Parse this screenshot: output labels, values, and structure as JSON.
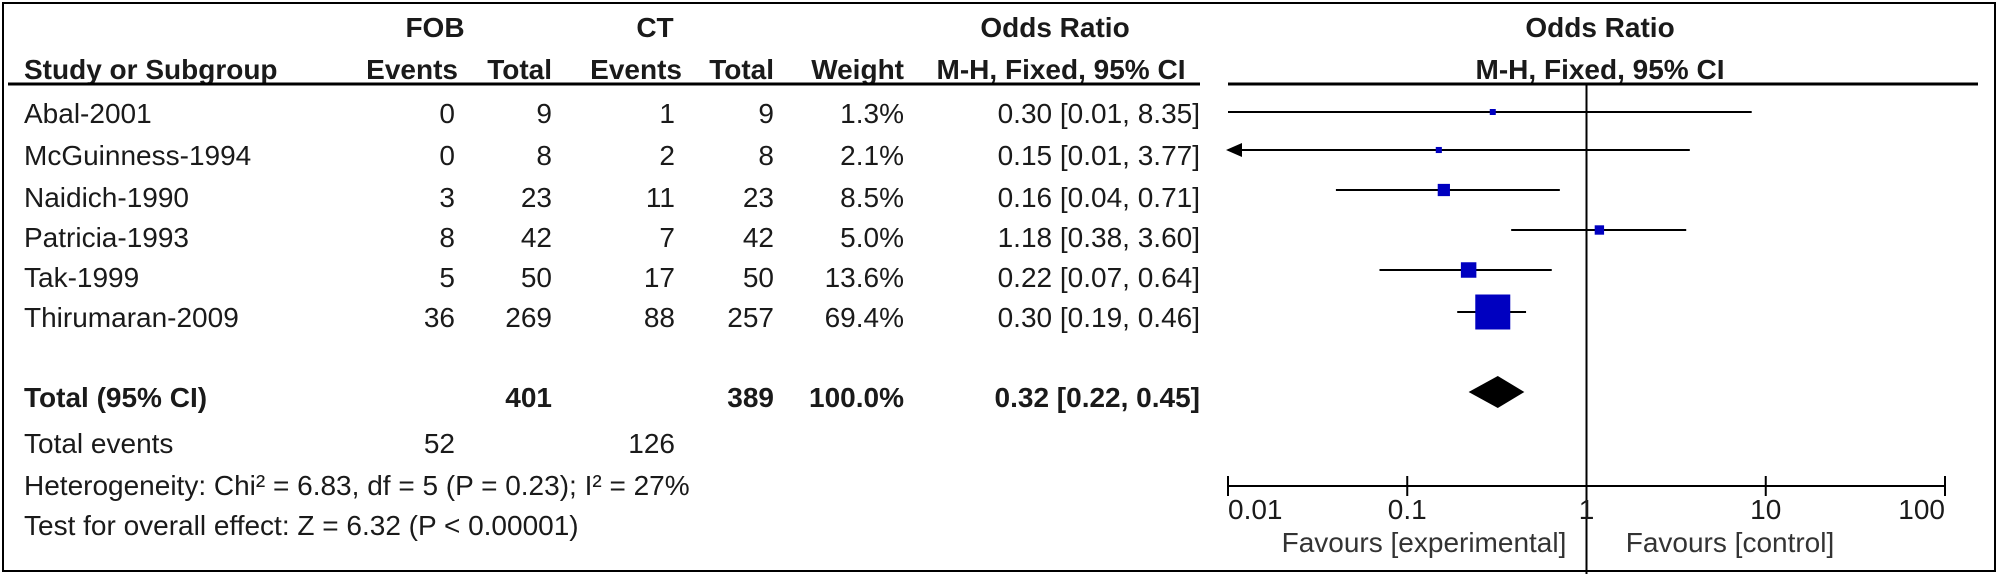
{
  "headers": {
    "group1": "FOB",
    "group2": "CT",
    "or_top": "Odds Ratio",
    "plot_top": "Odds Ratio",
    "study": "Study or Subgroup",
    "events1": "Events",
    "total1": "Total",
    "events2": "Events",
    "total2": "Total",
    "weight": "Weight",
    "method": "M-H, Fixed, 95% CI",
    "plot_method": "M-H, Fixed, 95% CI"
  },
  "studies": [
    {
      "name": "Abal-2001",
      "e1": "0",
      "t1": "9",
      "e2": "1",
      "t2": "9",
      "weight": "1.3%",
      "ci": "0.30 [0.01, 8.35]"
    },
    {
      "name": "McGuinness-1994",
      "e1": "0",
      "t1": "8",
      "e2": "2",
      "t2": "8",
      "weight": "2.1%",
      "ci": "0.15 [0.01, 3.77]"
    },
    {
      "name": "Naidich-1990",
      "e1": "3",
      "t1": "23",
      "e2": "11",
      "t2": "23",
      "weight": "8.5%",
      "ci": "0.16 [0.04, 0.71]"
    },
    {
      "name": "Patricia-1993",
      "e1": "8",
      "t1": "42",
      "e2": "7",
      "t2": "42",
      "weight": "5.0%",
      "ci": "1.18 [0.38, 3.60]"
    },
    {
      "name": "Tak-1999",
      "e1": "5",
      "t1": "50",
      "e2": "17",
      "t2": "50",
      "weight": "13.6%",
      "ci": "0.22 [0.07, 0.64]"
    },
    {
      "name": "Thirumaran-2009",
      "e1": "36",
      "t1": "269",
      "e2": "88",
      "t2": "257",
      "weight": "69.4%",
      "ci": "0.30 [0.19, 0.46]"
    }
  ],
  "total": {
    "label": "Total (95% CI)",
    "t1": "401",
    "t2": "389",
    "weight": "100.0%",
    "ci": "0.32 [0.22, 0.45]"
  },
  "total_events": {
    "label": "Total events",
    "e1": "52",
    "e2": "126"
  },
  "heterogeneity": "Heterogeneity: Chi² = 6.83, df = 5 (P = 0.23); I² = 27%",
  "overall_effect": "Test for overall effect: Z = 6.32 (P < 0.00001)",
  "colors": {
    "square": "#0000c0",
    "diamond": "#000000",
    "line": "#000000"
  },
  "chart_data": {
    "type": "forest",
    "scale": "log",
    "xlim": [
      0.01,
      100
    ],
    "ticks": [
      0.01,
      0.1,
      1,
      10,
      100
    ],
    "tick_labels": [
      "0.01",
      "0.1",
      "1",
      "10",
      "100"
    ],
    "reference_line": 1,
    "favours_left": "Favours [experimental]",
    "favours_right": "Favours [control]",
    "rows": [
      {
        "study": "Abal-2001",
        "or": 0.3,
        "lo": 0.01,
        "hi": 8.35,
        "weight": 1.3
      },
      {
        "study": "McGuinness-1994",
        "or": 0.15,
        "lo": 0.01,
        "hi": 3.77,
        "weight": 2.1,
        "arrow_left": true
      },
      {
        "study": "Naidich-1990",
        "or": 0.16,
        "lo": 0.04,
        "hi": 0.71,
        "weight": 8.5
      },
      {
        "study": "Patricia-1993",
        "or": 1.18,
        "lo": 0.38,
        "hi": 3.6,
        "weight": 5.0
      },
      {
        "study": "Tak-1999",
        "or": 0.22,
        "lo": 0.07,
        "hi": 0.64,
        "weight": 13.6
      },
      {
        "study": "Thirumaran-2009",
        "or": 0.3,
        "lo": 0.19,
        "hi": 0.46,
        "weight": 69.4
      }
    ],
    "pooled": {
      "or": 0.32,
      "lo": 0.22,
      "hi": 0.45
    }
  }
}
